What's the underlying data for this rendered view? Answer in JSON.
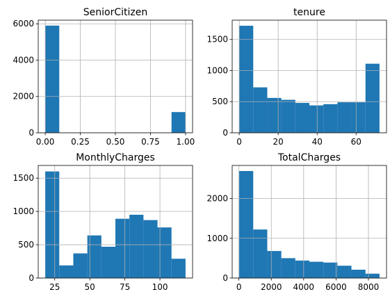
{
  "chart_data": [
    {
      "type": "bar",
      "title": "SeniorCitizen",
      "bins": [
        0.0,
        0.1,
        0.2,
        0.3,
        0.4,
        0.5,
        0.6,
        0.7,
        0.8,
        0.9,
        1.0
      ],
      "counts": [
        5900,
        0,
        0,
        0,
        0,
        0,
        0,
        0,
        0,
        1140
      ],
      "xlim": [
        -0.05,
        1.05
      ],
      "ylim": [
        0,
        6200
      ],
      "xticks": [
        0.0,
        0.25,
        0.5,
        0.75,
        1.0
      ],
      "xtick_labels": [
        "0.00",
        "0.25",
        "0.50",
        "0.75",
        "1.00"
      ],
      "yticks": [
        0,
        2000,
        4000,
        6000
      ],
      "ytick_labels": [
        "0",
        "2000",
        "4000",
        "6000"
      ],
      "grid": true,
      "color": "#1f77b4"
    },
    {
      "type": "bar",
      "title": "tenure",
      "bins": [
        0,
        7.2,
        14.4,
        21.6,
        28.8,
        36,
        43.2,
        50.4,
        57.6,
        64.8,
        72
      ],
      "counts": [
        1720,
        730,
        560,
        530,
        480,
        440,
        460,
        490,
        490,
        1110
      ],
      "xlim": [
        -3.6,
        75.6
      ],
      "ylim": [
        0,
        1810
      ],
      "xticks": [
        0,
        20,
        40,
        60
      ],
      "xtick_labels": [
        "0",
        "20",
        "40",
        "60"
      ],
      "yticks": [
        0,
        500,
        1000,
        1500
      ],
      "ytick_labels": [
        "0",
        "500",
        "1000",
        "1500"
      ],
      "grid": true,
      "color": "#1f77b4"
    },
    {
      "type": "bar",
      "title": "MonthlyCharges",
      "bins": [
        18.25,
        28.25,
        38.25,
        48.25,
        58.25,
        68.25,
        78.25,
        88.25,
        98.25,
        108.25,
        118.25
      ],
      "counts": [
        1600,
        190,
        370,
        640,
        470,
        890,
        950,
        870,
        760,
        290
      ],
      "xlim": [
        13.25,
        123.25
      ],
      "ylim": [
        0,
        1690
      ],
      "xticks": [
        25,
        50,
        75,
        100
      ],
      "xtick_labels": [
        "25",
        "50",
        "75",
        "100"
      ],
      "yticks": [
        0,
        500,
        1000,
        1500
      ],
      "ytick_labels": [
        "0",
        "500",
        "1000",
        "1500"
      ],
      "grid": true,
      "color": "#1f77b4"
    },
    {
      "type": "bar",
      "title": "TotalCharges",
      "bins": [
        18.8,
        885.4,
        1752,
        2618.6,
        3485.2,
        4351.8,
        5218.4,
        6085,
        6951.6,
        7818.2,
        8684.8
      ],
      "counts": [
        2690,
        1220,
        680,
        500,
        440,
        410,
        390,
        310,
        210,
        110
      ],
      "xlim": [
        -414.5,
        9118.1
      ],
      "ylim": [
        0,
        2830
      ],
      "xticks": [
        0,
        2000,
        4000,
        6000,
        8000
      ],
      "xtick_labels": [
        "0",
        "2000",
        "4000",
        "6000",
        "8000"
      ],
      "yticks": [
        0,
        1000,
        2000
      ],
      "ytick_labels": [
        "0",
        "1000",
        "2000"
      ],
      "grid": true,
      "color": "#1f77b4"
    }
  ]
}
